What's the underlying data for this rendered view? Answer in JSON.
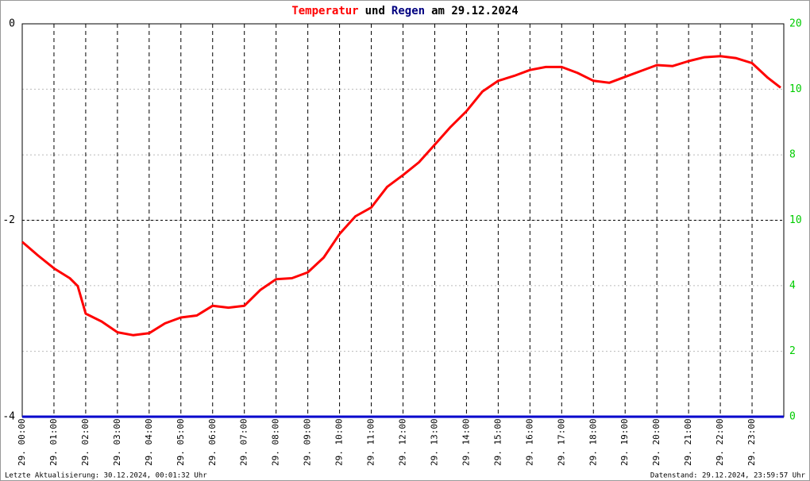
{
  "chart_data": {
    "type": "line",
    "title": [
      {
        "text": "Temperatur",
        "color": "#ff0000"
      },
      {
        "text": "und",
        "color": "#000000"
      },
      {
        "text": "Regen",
        "color": "#000080"
      },
      {
        "text": "am 29.12.2024",
        "color": "#000000"
      }
    ],
    "xlim": [
      0,
      24
    ],
    "xticks": [
      {
        "value": 0,
        "label": "29. 00:00"
      },
      {
        "value": 1,
        "label": "29. 01:00"
      },
      {
        "value": 2,
        "label": "29. 02:00"
      },
      {
        "value": 3,
        "label": "29. 03:00"
      },
      {
        "value": 4,
        "label": "29. 04:00"
      },
      {
        "value": 5,
        "label": "29. 05:00"
      },
      {
        "value": 6,
        "label": "29. 06:00"
      },
      {
        "value": 7,
        "label": "29. 07:00"
      },
      {
        "value": 8,
        "label": "29. 08:00"
      },
      {
        "value": 9,
        "label": "29. 09:00"
      },
      {
        "value": 10,
        "label": "29. 10:00"
      },
      {
        "value": 11,
        "label": "29. 11:00"
      },
      {
        "value": 12,
        "label": "29. 12:00"
      },
      {
        "value": 13,
        "label": "29. 13:00"
      },
      {
        "value": 14,
        "label": "29. 14:00"
      },
      {
        "value": 15,
        "label": "29. 15:00"
      },
      {
        "value": 16,
        "label": "29. 16:00"
      },
      {
        "value": 17,
        "label": "29. 17:00"
      },
      {
        "value": 18,
        "label": "29. 18:00"
      },
      {
        "value": 19,
        "label": "29. 19:00"
      },
      {
        "value": 20,
        "label": "29. 20:00"
      },
      {
        "value": 21,
        "label": "29. 21:00"
      },
      {
        "value": 22,
        "label": "29. 22:00"
      },
      {
        "value": 23,
        "label": "29. 23:00"
      }
    ],
    "ylim": [
      -4,
      0
    ],
    "yticks": [
      -4,
      -2,
      0
    ],
    "y2lim": [
      0,
      20
    ],
    "y2ticks": [
      0,
      {
        "value": 3.33,
        "label": "2"
      },
      {
        "value": 6.67,
        "label": "4"
      },
      10,
      {
        "value": 13.33,
        "label": "8"
      },
      {
        "value": 16.67,
        "label": "10"
      },
      20
    ],
    "y2tick_color": "#00cc00",
    "series": [
      {
        "name": "Temperatur",
        "color": "#ff0000",
        "x": [
          0,
          0.5,
          1,
          1.5,
          1.75,
          2,
          2.5,
          3,
          3.5,
          4,
          4.5,
          5,
          5.5,
          6,
          6.5,
          7,
          7.5,
          8,
          8.5,
          9,
          9.5,
          10,
          10.5,
          11,
          11.5,
          12,
          12.5,
          13,
          13.5,
          14,
          14.5,
          15,
          15.5,
          16,
          16.5,
          17,
          17.5,
          18,
          18.5,
          19,
          19.5,
          20,
          20.5,
          21,
          21.5,
          22,
          22.5,
          23,
          23.5,
          23.9
        ],
        "values": [
          -2.22,
          -2.36,
          -2.49,
          -2.59,
          -2.67,
          -2.95,
          -3.03,
          -3.14,
          -3.17,
          -3.15,
          -3.05,
          -2.99,
          -2.97,
          -2.87,
          -2.89,
          -2.87,
          -2.71,
          -2.6,
          -2.59,
          -2.53,
          -2.38,
          -2.14,
          -1.96,
          -1.87,
          -1.66,
          -1.54,
          -1.41,
          -1.23,
          -1.05,
          -0.89,
          -0.69,
          -0.58,
          -0.53,
          -0.47,
          -0.44,
          -0.44,
          -0.5,
          -0.58,
          -0.6,
          -0.54,
          -0.48,
          -0.42,
          -0.43,
          -0.38,
          -0.34,
          -0.33,
          -0.35,
          -0.4,
          -0.55,
          -0.65
        ]
      },
      {
        "name": "Regen",
        "color": "#0000cc",
        "axis": "y2",
        "x": [
          0,
          24
        ],
        "values": [
          0,
          0
        ]
      }
    ],
    "footer_left": "Letzte Aktualisierung: 30.12.2024, 00:01:32 Uhr",
    "footer_right": "Datenstand: 29.12.2024, 23:59:57 Uhr"
  }
}
